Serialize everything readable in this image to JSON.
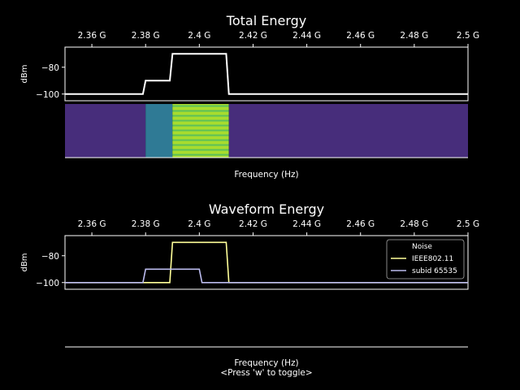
{
  "hint": "<Press 'w' to toggle>",
  "colors": {
    "background": "#000000",
    "total_line": "#ffffff",
    "ieee": "#ffff99",
    "subid": "#bbbbee",
    "spectrogram_bg": "#472d7b"
  },
  "chart_data": [
    {
      "type": "line",
      "title": "Total Energy",
      "xlabel": "Frequency (Hz)",
      "ylabel": "dBm",
      "xlim": [
        2.35,
        2.5
      ],
      "ylim": [
        -105,
        -65
      ],
      "x_ticks": [
        {
          "v": 2.36,
          "label": "2.36 G"
        },
        {
          "v": 2.38,
          "label": "2.38 G"
        },
        {
          "v": 2.4,
          "label": "2.4 G"
        },
        {
          "v": 2.42,
          "label": "2.42 G"
        },
        {
          "v": 2.44,
          "label": "2.44 G"
        },
        {
          "v": 2.46,
          "label": "2.46 G"
        },
        {
          "v": 2.48,
          "label": "2.48 G"
        },
        {
          "v": 2.5,
          "label": "2.5 G"
        }
      ],
      "y_ticks": [
        {
          "v": -80,
          "label": "−80"
        },
        {
          "v": -100,
          "label": "−100"
        }
      ],
      "series": [
        {
          "color": "#ffffff",
          "x": [
            2.35,
            2.379,
            2.38,
            2.389,
            2.39,
            2.41,
            2.411,
            2.5
          ],
          "y": [
            -100,
            -100,
            -90,
            -90,
            -70,
            -70,
            -100,
            -100
          ]
        }
      ]
    },
    {
      "type": "heatmap",
      "xlabel": "Frequency (Hz)",
      "xlim": [
        2.35,
        2.5
      ],
      "bands": [
        {
          "x0": 2.35,
          "x1": 2.38,
          "level": "low"
        },
        {
          "x0": 2.38,
          "x1": 2.39,
          "level": "mid"
        },
        {
          "x0": 2.39,
          "x1": 2.411,
          "level": "high"
        },
        {
          "x0": 2.411,
          "x1": 2.5,
          "level": "low"
        }
      ]
    },
    {
      "type": "line",
      "title": "Waveform Energy",
      "xlabel": "Frequency (Hz)",
      "ylabel": "dBm",
      "xlim": [
        2.35,
        2.5
      ],
      "ylim": [
        -105,
        -65
      ],
      "x_ticks": [
        {
          "v": 2.36,
          "label": "2.36 G"
        },
        {
          "v": 2.38,
          "label": "2.38 G"
        },
        {
          "v": 2.4,
          "label": "2.4 G"
        },
        {
          "v": 2.42,
          "label": "2.42 G"
        },
        {
          "v": 2.44,
          "label": "2.44 G"
        },
        {
          "v": 2.46,
          "label": "2.46 G"
        },
        {
          "v": 2.48,
          "label": "2.48 G"
        },
        {
          "v": 2.5,
          "label": "2.5 G"
        }
      ],
      "y_ticks": [
        {
          "v": -80,
          "label": "−80"
        },
        {
          "v": -100,
          "label": "−100"
        }
      ],
      "legend": "top-right",
      "series": [
        {
          "name": "Noise",
          "color": "#000000",
          "x": [
            2.35,
            2.5
          ],
          "y": [
            -100,
            -100
          ]
        },
        {
          "name": "IEEE802.11",
          "color": "#ffff99",
          "x": [
            2.35,
            2.389,
            2.39,
            2.41,
            2.411,
            2.5
          ],
          "y": [
            -100,
            -100,
            -70,
            -70,
            -100,
            -100
          ]
        },
        {
          "name": "subid 65535",
          "color": "#bbbbee",
          "x": [
            2.35,
            2.379,
            2.38,
            2.4,
            2.401,
            2.5
          ],
          "y": [
            -100,
            -100,
            -90,
            -90,
            -100,
            -100
          ]
        }
      ]
    }
  ]
}
